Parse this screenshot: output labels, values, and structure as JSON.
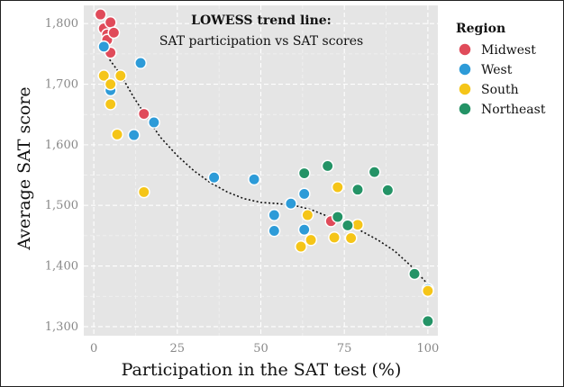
{
  "chart_data": {
    "type": "scatter",
    "title": "LOWESS trend line:",
    "subtitle": "SAT participation vs SAT scores",
    "xlabel": "Participation in the SAT test (%)",
    "ylabel": "Average SAT score",
    "xlim": [
      -3,
      103
    ],
    "ylim": [
      1285,
      1830
    ],
    "xticks": [
      0,
      25,
      50,
      75,
      100
    ],
    "xtick_labels": [
      "0",
      "25",
      "50",
      "75",
      "100"
    ],
    "yticks": [
      1300,
      1400,
      1500,
      1600,
      1700,
      1800
    ],
    "ytick_labels": [
      "1,300",
      "1,400",
      "1,500",
      "1,600",
      "1,700",
      "1,800"
    ],
    "grid": true,
    "background": "#e5e5e5",
    "legend": {
      "title": "Region",
      "placement": "right",
      "entries": [
        {
          "name": "Midwest",
          "color": "#e04b5a"
        },
        {
          "name": "West",
          "color": "#2d9bd8"
        },
        {
          "name": "South",
          "color": "#f5c518"
        },
        {
          "name": "Northeast",
          "color": "#249366"
        }
      ]
    },
    "series": [
      {
        "name": "Midwest",
        "color": "#e04b5a",
        "points": [
          [
            2,
            1815
          ],
          [
            3,
            1792
          ],
          [
            4,
            1782
          ],
          [
            5,
            1802
          ],
          [
            4,
            1773
          ],
          [
            6,
            1785
          ],
          [
            5,
            1752
          ],
          [
            15,
            1651
          ],
          [
            71,
            1474
          ]
        ]
      },
      {
        "name": "West",
        "color": "#2d9bd8",
        "points": [
          [
            3,
            1762
          ],
          [
            5,
            1690
          ],
          [
            14,
            1735
          ],
          [
            12,
            1616
          ],
          [
            18,
            1637
          ],
          [
            36,
            1546
          ],
          [
            48,
            1543
          ],
          [
            54,
            1484
          ],
          [
            54,
            1458
          ],
          [
            59,
            1503
          ],
          [
            63,
            1519
          ],
          [
            63,
            1460
          ],
          [
            100,
            1362
          ]
        ]
      },
      {
        "name": "South",
        "color": "#f5c518",
        "points": [
          [
            3,
            1714
          ],
          [
            8,
            1714
          ],
          [
            5,
            1700
          ],
          [
            5,
            1667
          ],
          [
            7,
            1617
          ],
          [
            15,
            1522
          ],
          [
            62,
            1432
          ],
          [
            64,
            1484
          ],
          [
            65,
            1443
          ],
          [
            72,
            1447
          ],
          [
            73,
            1530
          ],
          [
            77,
            1446
          ],
          [
            79,
            1468
          ],
          [
            100,
            1359
          ]
        ]
      },
      {
        "name": "Northeast",
        "color": "#249366",
        "points": [
          [
            63,
            1553
          ],
          [
            70,
            1565
          ],
          [
            73,
            1481
          ],
          [
            76,
            1467
          ],
          [
            79,
            1526
          ],
          [
            84,
            1555
          ],
          [
            88,
            1525
          ],
          [
            96,
            1387
          ],
          [
            100,
            1309
          ]
        ]
      }
    ],
    "trend_line": {
      "method": "LOWESS",
      "style": "dotted",
      "color": "#111111",
      "points": [
        [
          4,
          1746
        ],
        [
          8,
          1716
        ],
        [
          12,
          1678
        ],
        [
          16,
          1644
        ],
        [
          20,
          1612
        ],
        [
          25,
          1582
        ],
        [
          30,
          1557
        ],
        [
          35,
          1537
        ],
        [
          40,
          1522
        ],
        [
          45,
          1511
        ],
        [
          50,
          1505
        ],
        [
          55,
          1503
        ],
        [
          60,
          1500
        ],
        [
          65,
          1493
        ],
        [
          70,
          1482
        ],
        [
          75,
          1470
        ],
        [
          80,
          1458
        ],
        [
          85,
          1443
        ],
        [
          90,
          1425
        ],
        [
          95,
          1400
        ],
        [
          100,
          1370
        ]
      ]
    }
  }
}
